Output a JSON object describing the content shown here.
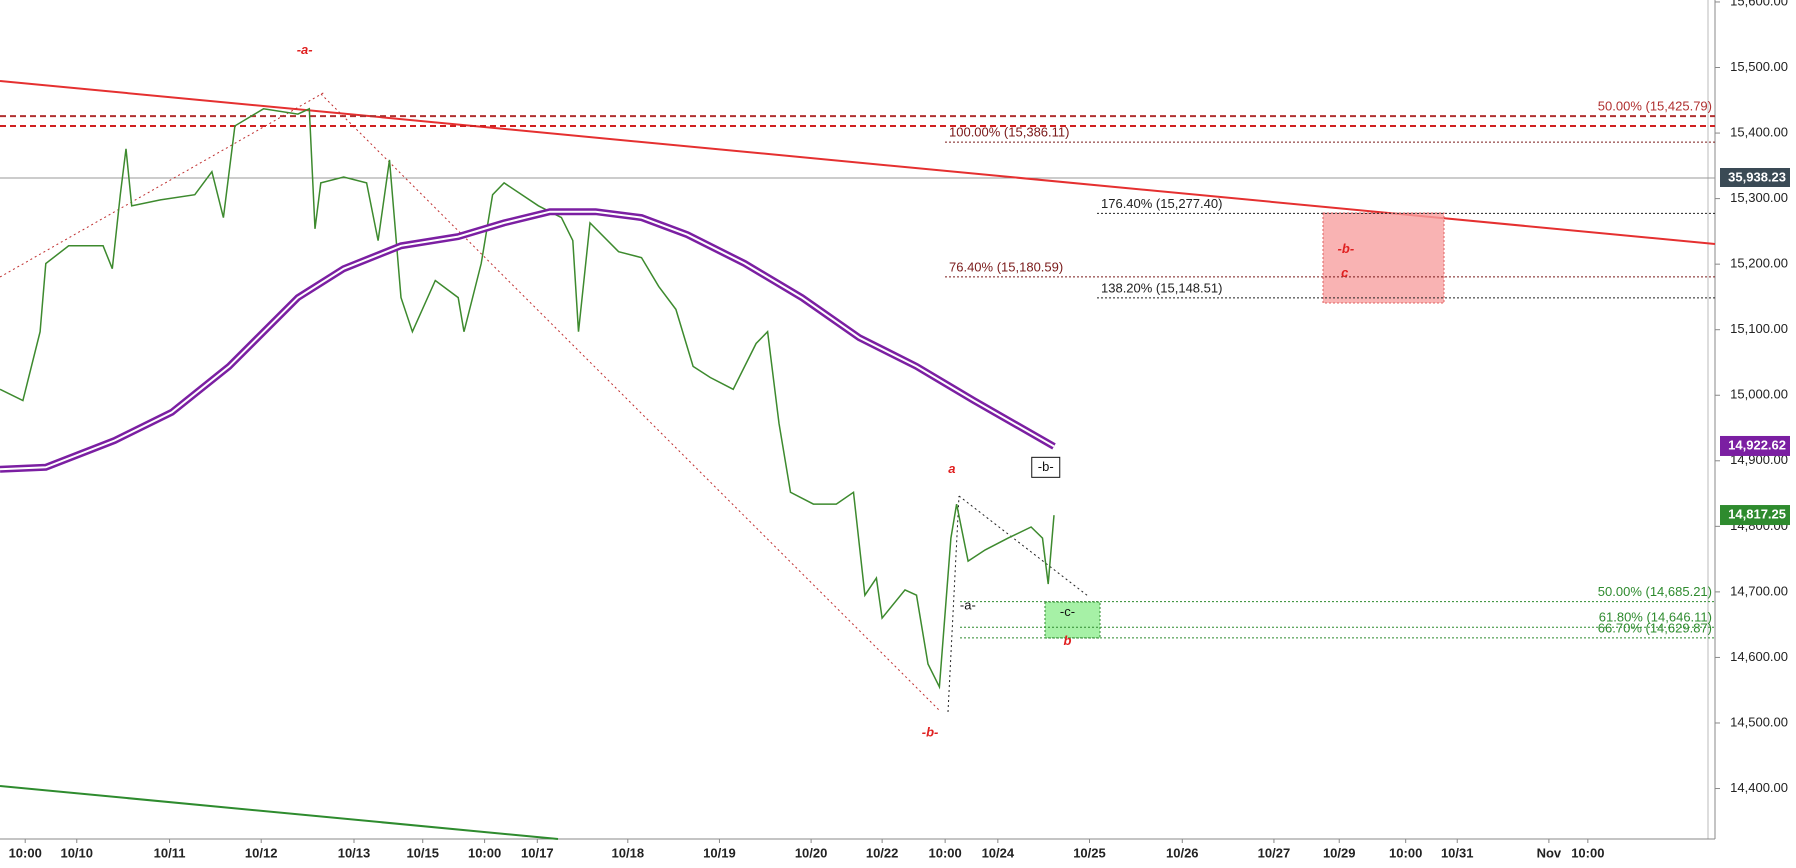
{
  "chart_data": {
    "type": "line",
    "xlim": [
      0,
      1497
    ],
    "ylim": [
      14323,
      15603
    ],
    "xticks": [
      {
        "value": 22,
        "label": "10:00"
      },
      {
        "value": 67,
        "label": "10/10"
      },
      {
        "value": 148,
        "label": "10/11"
      },
      {
        "value": 228,
        "label": "10/12"
      },
      {
        "value": 309,
        "label": "10/13"
      },
      {
        "value": 369,
        "label": "10/15"
      },
      {
        "value": 423,
        "label": "10:00"
      },
      {
        "value": 469,
        "label": "10/17"
      },
      {
        "value": 548,
        "label": "10/18"
      },
      {
        "value": 628,
        "label": "10/19"
      },
      {
        "value": 708,
        "label": "10/20"
      },
      {
        "value": 770,
        "label": "10/22"
      },
      {
        "value": 825,
        "label": "10:00"
      },
      {
        "value": 871,
        "label": "10/24"
      },
      {
        "value": 951,
        "label": "10/25"
      },
      {
        "value": 1032,
        "label": "10/26"
      },
      {
        "value": 1112,
        "label": "10/27"
      },
      {
        "value": 1169,
        "label": "10/29"
      },
      {
        "value": 1227,
        "label": "10:00"
      },
      {
        "value": 1272,
        "label": "10/31"
      },
      {
        "value": 1352,
        "label": "Nov"
      },
      {
        "value": 1386,
        "label": "10:00"
      }
    ],
    "yticks": [
      {
        "value": 15600,
        "label": "15,600.00"
      },
      {
        "value": 15500,
        "label": "15,500.00"
      },
      {
        "value": 15400,
        "label": "15,400.00"
      },
      {
        "value": 15300,
        "label": "15,300.00"
      },
      {
        "value": 15200,
        "label": "15,200.00"
      },
      {
        "value": 15100,
        "label": "15,100.00"
      },
      {
        "value": 15000,
        "label": "15,000.00"
      },
      {
        "value": 14900,
        "label": "14,900.00"
      },
      {
        "value": 14800,
        "label": "14,800.00"
      },
      {
        "value": 14700,
        "label": "14,700.00"
      },
      {
        "value": 14600,
        "label": "14,600.00"
      },
      {
        "value": 14500,
        "label": "14,500.00"
      },
      {
        "value": 14400,
        "label": "14,400.00"
      }
    ],
    "series": [
      {
        "color": "#3d8a2e",
        "x": [
          0,
          20,
          35,
          40,
          60,
          90,
          98,
          105,
          110,
          115,
          140,
          170,
          185,
          195,
          205,
          230,
          260,
          270,
          275,
          280,
          300,
          320,
          330,
          340,
          350,
          360,
          380,
          400,
          405,
          420,
          430,
          440,
          470,
          490,
          500,
          505,
          515,
          540,
          560,
          575,
          590,
          605,
          620,
          640,
          660,
          670,
          680,
          690,
          710,
          730,
          745,
          755,
          765,
          770,
          790,
          800,
          810,
          820,
          830,
          835,
          845,
          860,
          880,
          900,
          910,
          915,
          920
        ],
        "values": [
          15009,
          14992,
          15097,
          15201,
          15228,
          15228,
          15193,
          15306,
          15376,
          15289,
          15298,
          15306,
          15341,
          15271,
          15411,
          15437,
          15429,
          15437,
          15254,
          15324,
          15333,
          15324,
          15236,
          15359,
          15149,
          15097,
          15175,
          15149,
          15097,
          15201,
          15306,
          15324,
          15289,
          15271,
          15236,
          15097,
          15263,
          15219,
          15210,
          15166,
          15131,
          15044,
          15027,
          15009,
          15079,
          15097,
          14957,
          14852,
          14834,
          14834,
          14852,
          14695,
          14721,
          14660,
          14703,
          14695,
          14590,
          14555,
          14782,
          14834,
          14747,
          14764,
          14782,
          14799,
          14782,
          14712,
          14817
        ]
      },
      {
        "color": "#7b1fa2",
        "x": [
          0,
          40,
          100,
          150,
          200,
          260,
          300,
          350,
          400,
          440,
          480,
          520,
          560,
          600,
          650,
          700,
          750,
          800,
          850,
          920
        ],
        "values": [
          14887,
          14890,
          14931,
          14974,
          15044,
          15149,
          15193,
          15228,
          15242,
          15263,
          15280,
          15280,
          15271,
          15245,
          15201,
          15149,
          15088,
          15044,
          14992,
          14922
        ]
      }
    ],
    "levels": [
      {
        "label": "50.00% (15,425.79)",
        "value": 15425.79,
        "color": "#b03030"
      },
      {
        "label": "100.00% (15,386.11)",
        "value": 15386.11,
        "color": "#7a1a1a"
      },
      {
        "label": "176.40% (15,277.40)",
        "value": 15277.4,
        "color": "#222222"
      },
      {
        "label": "76.40% (15,180.59)",
        "value": 15180.59,
        "color": "#7a1a1a"
      },
      {
        "label": "138.20% (15,148.51)",
        "value": 15148.51,
        "color": "#222222"
      },
      {
        "label": "50.00% (14,685.21)",
        "value": 14685.21,
        "color": "#2e8b2e"
      },
      {
        "label": "61.80% (14,646.11)",
        "value": 14646.11,
        "color": "#2e8b2e"
      },
      {
        "label": "66.70% (14,629.87)",
        "value": 14629.87,
        "color": "#2e8b2e"
      }
    ],
    "price_tags": [
      {
        "value": 14922.62,
        "label": "14,922.62",
        "color": "#7b1fa2"
      },
      {
        "value": 14817.25,
        "label": "14,817.25",
        "color": "#2e8b2e"
      }
    ],
    "reference_tag": "35,938.23",
    "annotations": [
      "-a-",
      "a",
      "-b-",
      "-b-",
      "-a-",
      "-c-",
      "b",
      "-b-",
      "c"
    ]
  }
}
